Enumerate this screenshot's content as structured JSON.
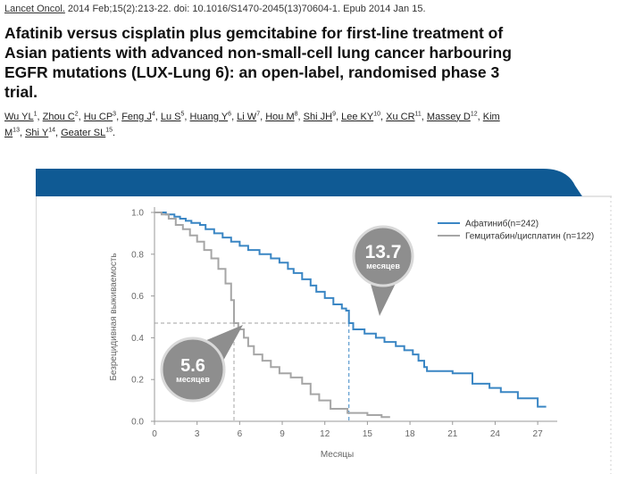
{
  "citation": {
    "journal_link": "Lancet Oncol.",
    "details": " 2014 Feb;15(2):213-22. doi: 10.1016/S1470-2045(13)70604-1. Epub 2014 Jan 15."
  },
  "title": "Afatinib versus cisplatin plus gemcitabine for first-line treatment of Asian patients with advanced non-small-cell lung cancer harbouring EGFR mutations (LUX-Lung 6): an open-label, randomised phase 3 trial.",
  "authors": [
    {
      "name": "Wu YL",
      "sup": "1"
    },
    {
      "name": "Zhou C",
      "sup": "2"
    },
    {
      "name": "Hu CP",
      "sup": "3"
    },
    {
      "name": "Feng J",
      "sup": "4"
    },
    {
      "name": "Lu S",
      "sup": "5"
    },
    {
      "name": "Huang Y",
      "sup": "6"
    },
    {
      "name": "Li W",
      "sup": "7"
    },
    {
      "name": "Hou M",
      "sup": "8"
    },
    {
      "name": "Shi JH",
      "sup": "9"
    },
    {
      "name": "Lee KY",
      "sup": "10"
    },
    {
      "name": "Xu CR",
      "sup": "11"
    },
    {
      "name": "Massey D",
      "sup": "12"
    },
    {
      "name": "Kim M",
      "sup": "13"
    },
    {
      "name": "Shi Y",
      "sup": "14"
    },
    {
      "name": "Geater SL",
      "sup": "15"
    }
  ],
  "colors": {
    "header_band": "#0f5a94",
    "afatinib": "#3a86c4",
    "gemcitabine": "#a6a6a6",
    "callout": "#8e8e8e"
  },
  "annotations": {
    "afatinib": {
      "value": "13.7",
      "unit": "месяцев"
    },
    "gemcitabine": {
      "value": "5.6",
      "unit": "месяцев"
    }
  },
  "chart_data": {
    "type": "line",
    "title": "",
    "xlabel": "Месяцы",
    "ylabel": "Безрецидивная выживаемость",
    "xlim": [
      0,
      28
    ],
    "ylim": [
      0,
      1
    ],
    "xticks": [
      0,
      3,
      6,
      9,
      12,
      15,
      18,
      21,
      24,
      27
    ],
    "yticks": [
      "0.0",
      "0.2",
      "0.4",
      "0.6",
      "0.8",
      "1.0"
    ],
    "grid": false,
    "legend_position": "top-right",
    "median_line_y": 0.47,
    "series": [
      {
        "name": "Афатиниб(n=242)",
        "color": "#3a86c4",
        "median_x": 13.7,
        "points": [
          [
            0,
            1.0
          ],
          [
            0.8,
            0.99
          ],
          [
            1.4,
            0.98
          ],
          [
            1.8,
            0.97
          ],
          [
            2.2,
            0.96
          ],
          [
            2.6,
            0.95
          ],
          [
            3.2,
            0.94
          ],
          [
            3.6,
            0.92
          ],
          [
            4.2,
            0.9
          ],
          [
            4.8,
            0.88
          ],
          [
            5.4,
            0.86
          ],
          [
            6.0,
            0.84
          ],
          [
            6.6,
            0.82
          ],
          [
            7.4,
            0.8
          ],
          [
            8.2,
            0.78
          ],
          [
            8.8,
            0.76
          ],
          [
            9.4,
            0.73
          ],
          [
            9.8,
            0.71
          ],
          [
            10.4,
            0.68
          ],
          [
            11.0,
            0.65
          ],
          [
            11.4,
            0.62
          ],
          [
            12.0,
            0.59
          ],
          [
            12.6,
            0.56
          ],
          [
            13.2,
            0.54
          ],
          [
            13.5,
            0.53
          ],
          [
            13.7,
            0.47
          ],
          [
            14.0,
            0.44
          ],
          [
            14.8,
            0.42
          ],
          [
            15.6,
            0.4
          ],
          [
            16.2,
            0.38
          ],
          [
            17.0,
            0.36
          ],
          [
            17.6,
            0.34
          ],
          [
            18.2,
            0.32
          ],
          [
            18.6,
            0.29
          ],
          [
            19.0,
            0.26
          ],
          [
            19.2,
            0.24
          ],
          [
            21.0,
            0.23
          ],
          [
            22.4,
            0.18
          ],
          [
            23.6,
            0.16
          ],
          [
            24.4,
            0.14
          ],
          [
            25.6,
            0.11
          ],
          [
            27.0,
            0.07
          ],
          [
            27.6,
            0.07
          ]
        ]
      },
      {
        "name": "Гемцитабин/цисплатин (n=122)",
        "color": "#a6a6a6",
        "median_x": 5.6,
        "points": [
          [
            0,
            1.0
          ],
          [
            0.5,
            0.99
          ],
          [
            1.0,
            0.97
          ],
          [
            1.5,
            0.94
          ],
          [
            2.0,
            0.92
          ],
          [
            2.5,
            0.89
          ],
          [
            3.0,
            0.86
          ],
          [
            3.5,
            0.82
          ],
          [
            4.0,
            0.78
          ],
          [
            4.5,
            0.73
          ],
          [
            5.0,
            0.66
          ],
          [
            5.4,
            0.58
          ],
          [
            5.6,
            0.47
          ],
          [
            5.9,
            0.44
          ],
          [
            6.3,
            0.4
          ],
          [
            6.6,
            0.36
          ],
          [
            7.0,
            0.32
          ],
          [
            7.6,
            0.29
          ],
          [
            8.2,
            0.26
          ],
          [
            8.8,
            0.23
          ],
          [
            9.6,
            0.21
          ],
          [
            10.4,
            0.18
          ],
          [
            11.0,
            0.13
          ],
          [
            11.6,
            0.1
          ],
          [
            12.4,
            0.06
          ],
          [
            13.6,
            0.04
          ],
          [
            15.0,
            0.03
          ],
          [
            16.0,
            0.02
          ],
          [
            16.6,
            0.02
          ]
        ]
      }
    ]
  }
}
